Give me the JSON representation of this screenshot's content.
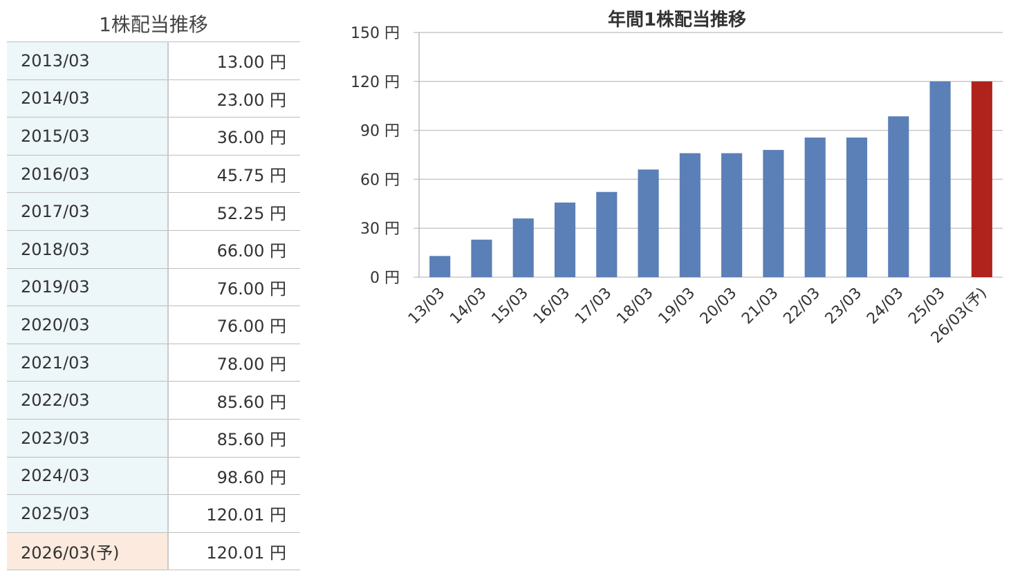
{
  "table": {
    "title": "1株配当推移",
    "unit": "円",
    "rows": [
      {
        "period": "2013/03",
        "amount": "13.00",
        "forecast": false
      },
      {
        "period": "2014/03",
        "amount": "23.00",
        "forecast": false
      },
      {
        "period": "2015/03",
        "amount": "36.00",
        "forecast": false
      },
      {
        "period": "2016/03",
        "amount": "45.75",
        "forecast": false
      },
      {
        "period": "2017/03",
        "amount": "52.25",
        "forecast": false
      },
      {
        "period": "2018/03",
        "amount": "66.00",
        "forecast": false
      },
      {
        "period": "2019/03",
        "amount": "76.00",
        "forecast": false
      },
      {
        "period": "2020/03",
        "amount": "76.00",
        "forecast": false
      },
      {
        "period": "2021/03",
        "amount": "78.00",
        "forecast": false
      },
      {
        "period": "2022/03",
        "amount": "85.60",
        "forecast": false
      },
      {
        "period": "2023/03",
        "amount": "85.60",
        "forecast": false
      },
      {
        "period": "2024/03",
        "amount": "98.60",
        "forecast": false
      },
      {
        "period": "2025/03",
        "amount": "120.01",
        "forecast": false
      },
      {
        "period": "2026/03(予)",
        "amount": "120.01",
        "forecast": true
      }
    ],
    "colors": {
      "period_bg": "#edf6f8",
      "forecast_bg": "#fbeadd"
    }
  },
  "chart_data": {
    "type": "bar",
    "title": "年間1株配当推移",
    "categories": [
      "13/03",
      "14/03",
      "15/03",
      "16/03",
      "17/03",
      "18/03",
      "19/03",
      "20/03",
      "21/03",
      "22/03",
      "23/03",
      "24/03",
      "25/03",
      "26/03(予)"
    ],
    "values": [
      13.0,
      23.0,
      36.0,
      45.75,
      52.25,
      66.0,
      76.0,
      76.0,
      78.0,
      85.6,
      85.6,
      98.6,
      120.01,
      120.01
    ],
    "forecast_index": 13,
    "ylim": [
      0,
      150
    ],
    "yticks": [
      0,
      30,
      60,
      90,
      120,
      150
    ],
    "ytick_unit": "円",
    "grid": true,
    "colors": {
      "bar": "#5b7fb7",
      "forecast": "#b0231c",
      "grid": "#c8c8c8"
    }
  }
}
